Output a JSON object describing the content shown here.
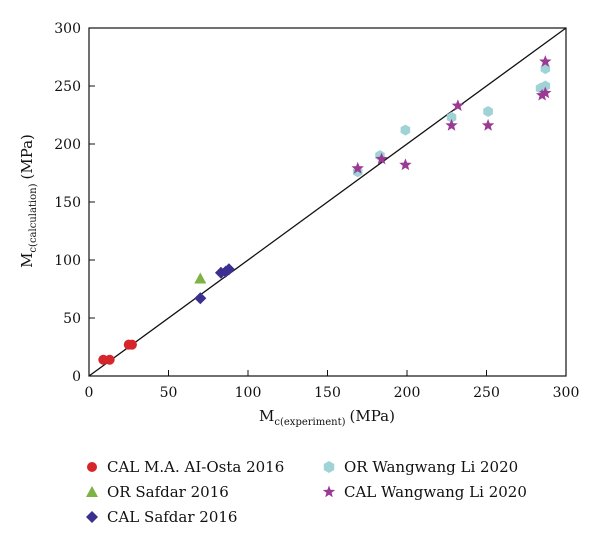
{
  "chart_data": {
    "type": "scatter",
    "title": "",
    "xlabel": {
      "main": "M",
      "sub": "c(experiment)",
      "unit": "(MPa)"
    },
    "ylabel": {
      "main": "M",
      "sub": "c(calculation)",
      "unit": "(MPa)"
    },
    "xlim": [
      0,
      300
    ],
    "ylim": [
      0,
      300
    ],
    "xticks": [
      0,
      50,
      100,
      150,
      200,
      250,
      300
    ],
    "yticks": [
      0,
      50,
      100,
      150,
      200,
      250,
      300
    ],
    "grid": false,
    "reference_line": {
      "from": [
        0,
        0
      ],
      "to": [
        300,
        300
      ]
    },
    "series": [
      {
        "name": "CAL M.A. AI-Osta 2016",
        "marker": "circle",
        "color": "#d7262b",
        "points": [
          [
            9,
            14
          ],
          [
            13,
            14
          ],
          [
            25,
            27
          ],
          [
            27,
            27
          ]
        ]
      },
      {
        "name": "OR Safdar 2016",
        "marker": "triangle",
        "color": "#7cb342",
        "points": [
          [
            70,
            84
          ]
        ]
      },
      {
        "name": "CAL Safdar 2016",
        "marker": "diamond",
        "color": "#3b2f8f",
        "points": [
          [
            70,
            67
          ],
          [
            83,
            89
          ],
          [
            86,
            90
          ],
          [
            88,
            92
          ]
        ]
      },
      {
        "name": "OR Wangwang Li 2020",
        "marker": "hexagon",
        "color": "#9fd3d5",
        "points": [
          [
            169,
            176
          ],
          [
            183,
            190
          ],
          [
            199,
            212
          ],
          [
            228,
            223
          ],
          [
            251,
            228
          ],
          [
            284,
            248
          ],
          [
            287,
            265
          ],
          [
            287,
            250
          ]
        ]
      },
      {
        "name": "CAL Wangwang Li 2020",
        "marker": "star",
        "color": "#9b3a94",
        "points": [
          [
            169,
            179
          ],
          [
            184,
            187
          ],
          [
            199,
            182
          ],
          [
            228,
            216
          ],
          [
            232,
            233
          ],
          [
            251,
            216
          ],
          [
            285,
            242
          ],
          [
            287,
            244
          ],
          [
            287,
            271
          ]
        ]
      }
    ],
    "legend_position": "bottom"
  }
}
